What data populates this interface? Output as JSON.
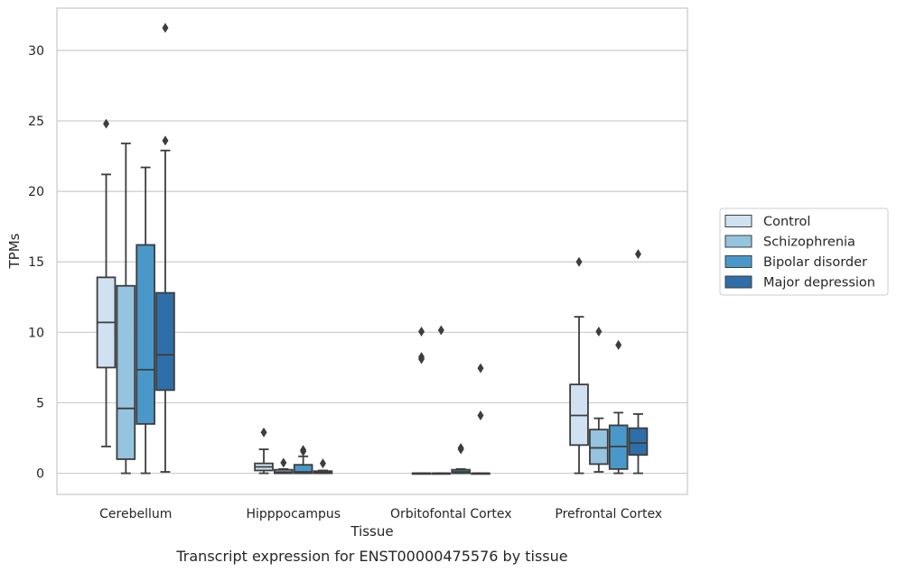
{
  "chart_data": {
    "type": "box",
    "title": "Transcript expression for ENST00000475576 by tissue",
    "xlabel": "Tissue",
    "ylabel": "TPMs",
    "ylim": [
      -1.5,
      33
    ],
    "yticks": [
      0,
      5,
      10,
      15,
      20,
      25,
      30
    ],
    "grid": "horizontal",
    "legend_position": "right",
    "categories": [
      "Cerebellum",
      "Hipppocampus",
      "Orbitofontal Cortex",
      "Prefrontal Cortex"
    ],
    "series": [
      {
        "name": "Control",
        "color": "#d0e1f2",
        "boxes": [
          {
            "whislo": 1.9,
            "q1": 7.5,
            "med": 10.7,
            "q3": 13.9,
            "whishi": 21.2,
            "fliers": [
              24.8
            ]
          },
          {
            "whislo": 0.0,
            "q1": 0.2,
            "med": 0.45,
            "q3": 0.7,
            "whishi": 1.7,
            "fliers": [
              2.9
            ]
          },
          {
            "whislo": 0.0,
            "q1": 0.0,
            "med": 0.0,
            "q3": 0.0,
            "whishi": 0.0,
            "fliers": [
              8.1,
              8.25,
              10.05
            ]
          },
          {
            "whislo": 0.0,
            "q1": 2.0,
            "med": 4.1,
            "q3": 6.3,
            "whishi": 11.1,
            "fliers": [
              15.0
            ]
          }
        ]
      },
      {
        "name": "Schizophrenia",
        "color": "#94c4df",
        "boxes": [
          {
            "whislo": 0.0,
            "q1": 1.0,
            "med": 4.6,
            "q3": 13.3,
            "whishi": 23.4,
            "fliers": []
          },
          {
            "whislo": 0.0,
            "q1": 0.0,
            "med": 0.08,
            "q3": 0.25,
            "whishi": 0.3,
            "fliers": [
              0.75
            ]
          },
          {
            "whislo": 0.0,
            "q1": 0.0,
            "med": 0.0,
            "q3": 0.0,
            "whishi": 0.0,
            "fliers": [
              10.15
            ]
          },
          {
            "whislo": 0.1,
            "q1": 0.65,
            "med": 1.8,
            "q3": 3.1,
            "whishi": 3.9,
            "fliers": [
              10.05
            ]
          }
        ]
      },
      {
        "name": "Bipolar disorder",
        "color": "#4a98c9",
        "boxes": [
          {
            "whislo": 0.0,
            "q1": 3.5,
            "med": 7.35,
            "q3": 16.2,
            "whishi": 21.7,
            "fliers": []
          },
          {
            "whislo": 0.0,
            "q1": 0.0,
            "med": 0.1,
            "q3": 0.6,
            "whishi": 1.2,
            "fliers": [
              1.55,
              1.65
            ]
          },
          {
            "whislo": 0.0,
            "q1": 0.0,
            "med": 0.1,
            "q3": 0.25,
            "whishi": 0.3,
            "fliers": [
              1.7,
              1.8
            ]
          },
          {
            "whislo": 0.0,
            "q1": 0.3,
            "med": 1.9,
            "q3": 3.4,
            "whishi": 4.3,
            "fliers": [
              9.1
            ]
          }
        ]
      },
      {
        "name": "Major depression",
        "color": "#2e6fa9",
        "boxes": [
          {
            "whislo": 0.1,
            "q1": 5.9,
            "med": 8.4,
            "q3": 12.8,
            "whishi": 22.9,
            "fliers": [
              23.6,
              31.6
            ]
          },
          {
            "whislo": 0.0,
            "q1": 0.0,
            "med": 0.05,
            "q3": 0.15,
            "whishi": 0.2,
            "fliers": [
              0.7
            ]
          },
          {
            "whislo": 0.0,
            "q1": 0.0,
            "med": 0.0,
            "q3": 0.0,
            "whishi": 0.0,
            "fliers": [
              4.1,
              7.45
            ]
          },
          {
            "whislo": 0.0,
            "q1": 1.3,
            "med": 2.15,
            "q3": 3.2,
            "whishi": 4.2,
            "fliers": [
              15.55
            ]
          }
        ]
      }
    ]
  }
}
